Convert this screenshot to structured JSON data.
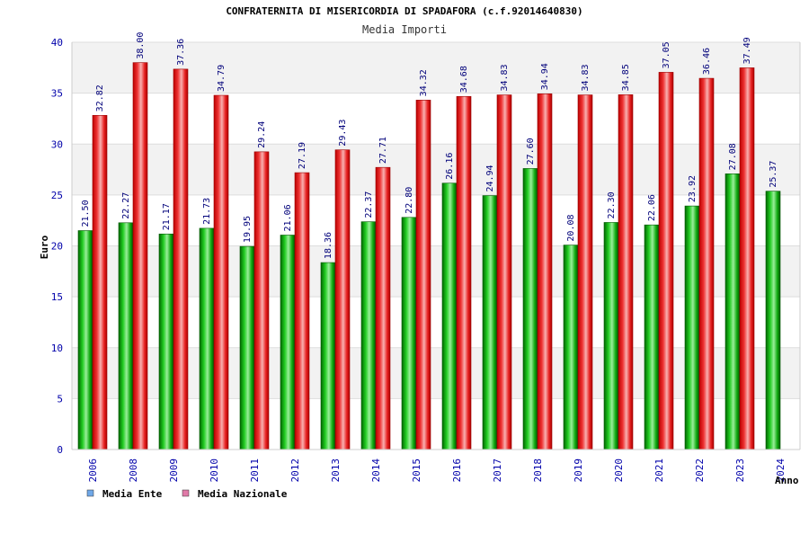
{
  "chart_data": {
    "type": "bar",
    "title": "CONFRATERNITA DI MISERICORDIA DI SPADAFORA (c.f.92014640830)",
    "subtitle": "Media Importi",
    "xlabel": "Anno",
    "ylabel": "Euro",
    "ylim": [
      0,
      40
    ],
    "yticks": [
      0,
      5,
      10,
      15,
      20,
      25,
      30,
      35,
      40
    ],
    "grid": true,
    "legend_position": "bottom-left",
    "categories": [
      "2006",
      "2008",
      "2009",
      "2010",
      "2011",
      "2012",
      "2013",
      "2014",
      "2015",
      "2016",
      "2017",
      "2018",
      "2019",
      "2020",
      "2021",
      "2022",
      "2023",
      "2024"
    ],
    "series": [
      {
        "name": "Media Ente",
        "color": "#00b000",
        "legend_color": "#6fa8e8",
        "values": [
          21.5,
          22.27,
          21.17,
          21.73,
          19.95,
          21.06,
          18.36,
          22.37,
          22.8,
          26.16,
          24.94,
          27.6,
          20.08,
          22.3,
          22.06,
          23.92,
          27.08,
          25.37
        ],
        "labels": [
          "21.50",
          "22.27",
          "21.17",
          "21.73",
          "19.95",
          "21.06",
          "18.36",
          "22.37",
          "22.80",
          "26.16",
          "24.94",
          "27.60",
          "20.08",
          "22.30",
          "22.06",
          "23.92",
          "27.08",
          "25.37"
        ]
      },
      {
        "name": "Media Nazionale",
        "color": "#ee2222",
        "legend_color": "#e07aa8",
        "values": [
          32.82,
          38.0,
          37.36,
          34.79,
          29.24,
          27.19,
          29.43,
          27.71,
          34.32,
          34.68,
          34.83,
          34.94,
          34.83,
          34.85,
          37.05,
          36.46,
          37.49,
          null
        ],
        "labels": [
          "32.82",
          "38.00",
          "37.36",
          "34.79",
          "29.24",
          "27.19",
          "29.43",
          "27.71",
          "34.32",
          "34.68",
          "34.83",
          "34.94",
          "34.83",
          "34.85",
          "37.05",
          "36.46",
          "37.49",
          null
        ]
      }
    ]
  }
}
